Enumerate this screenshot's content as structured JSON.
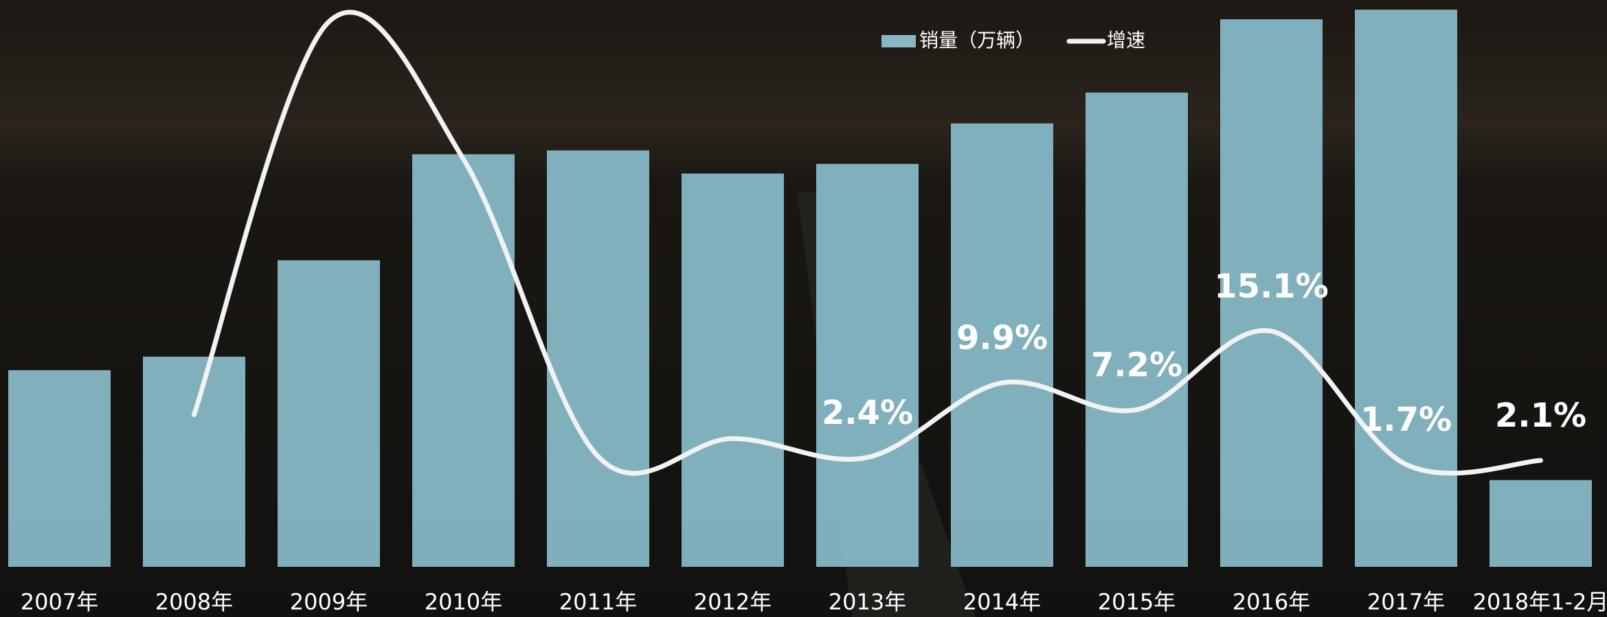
{
  "chart_data": {
    "type": "bar-line",
    "categories": [
      "2007年",
      "2008年",
      "2009年",
      "2010年",
      "2011年",
      "2012年",
      "2013年",
      "2014年",
      "2015年",
      "2016年",
      "2017年",
      "2018年1-2月"
    ],
    "series": [
      {
        "name": "销量（万辆）",
        "type": "bar",
        "color": "#86b8c6",
        "values": [
          1020,
          1090,
          1590,
          2140,
          2160,
          2040,
          2090,
          2300,
          2460,
          2840,
          2890,
          450
        ]
      },
      {
        "name": "增速",
        "type": "line",
        "color": "#f2f2f2",
        "axis": "y2",
        "values": [
          null,
          6.7,
          46.2,
          32.4,
          2.5,
          4.3,
          2.4,
          9.9,
          7.2,
          15.1,
          1.7,
          2.1
        ],
        "value_labels": [
          null,
          null,
          null,
          null,
          null,
          null,
          "2.4%",
          "9.9%",
          "7.2%",
          "15.1%",
          "1.7%",
          "2.1%"
        ]
      }
    ],
    "ylim": [
      0,
      2940
    ],
    "y2lim": [
      -8.6,
      48.4
    ],
    "legend": "top"
  }
}
